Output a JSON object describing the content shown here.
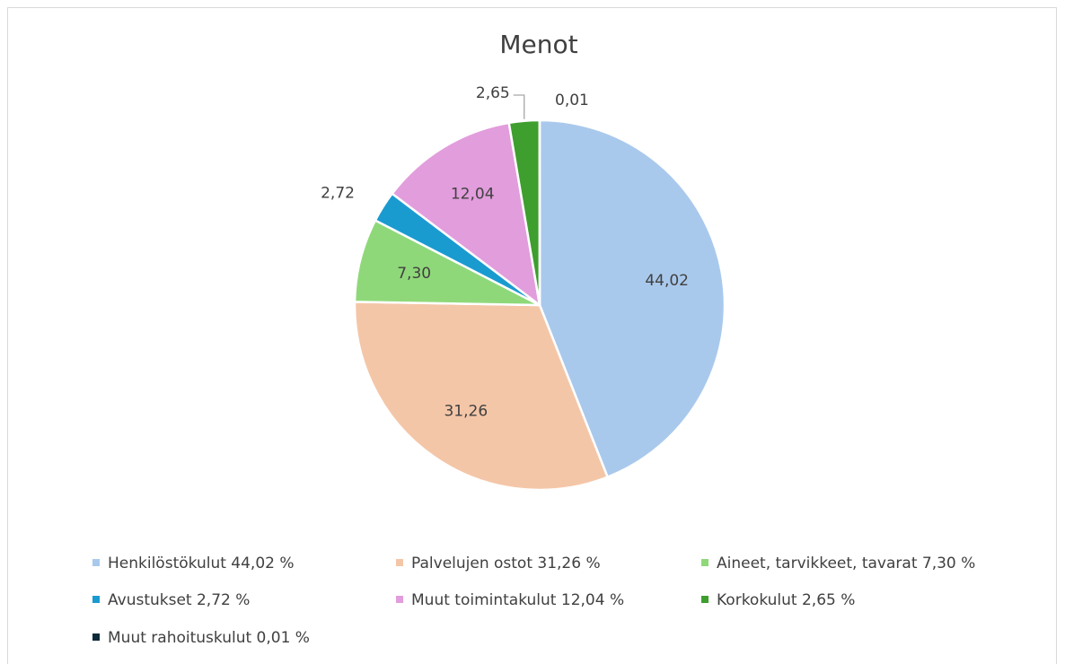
{
  "chart_data": {
    "type": "pie",
    "title": "Menot",
    "categories": [
      "Henkilöstökulut 44,02 %",
      "Palvelujen ostot 31,26 %",
      "Aineet, tarvikkeet, tavarat 7,30 %",
      "Avustukset 2,72 %",
      "Muut toimintakulut 12,04 %",
      "Korkokulut 2,65 %",
      "Muut rahoituskulut 0,01 %"
    ],
    "values": [
      44.02,
      31.26,
      7.3,
      2.72,
      12.04,
      2.65,
      0.01
    ],
    "value_labels": [
      "44,02",
      "31,26",
      "7,30",
      "2,72",
      "12,04",
      "2,65",
      "0,01"
    ],
    "colors": [
      "#a9c9ec",
      "#f4c6a8",
      "#8fd87a",
      "#1a9bd0",
      "#e29ddc",
      "#3e9e2e",
      "#0d2a3a"
    ],
    "legend": "bottom"
  }
}
